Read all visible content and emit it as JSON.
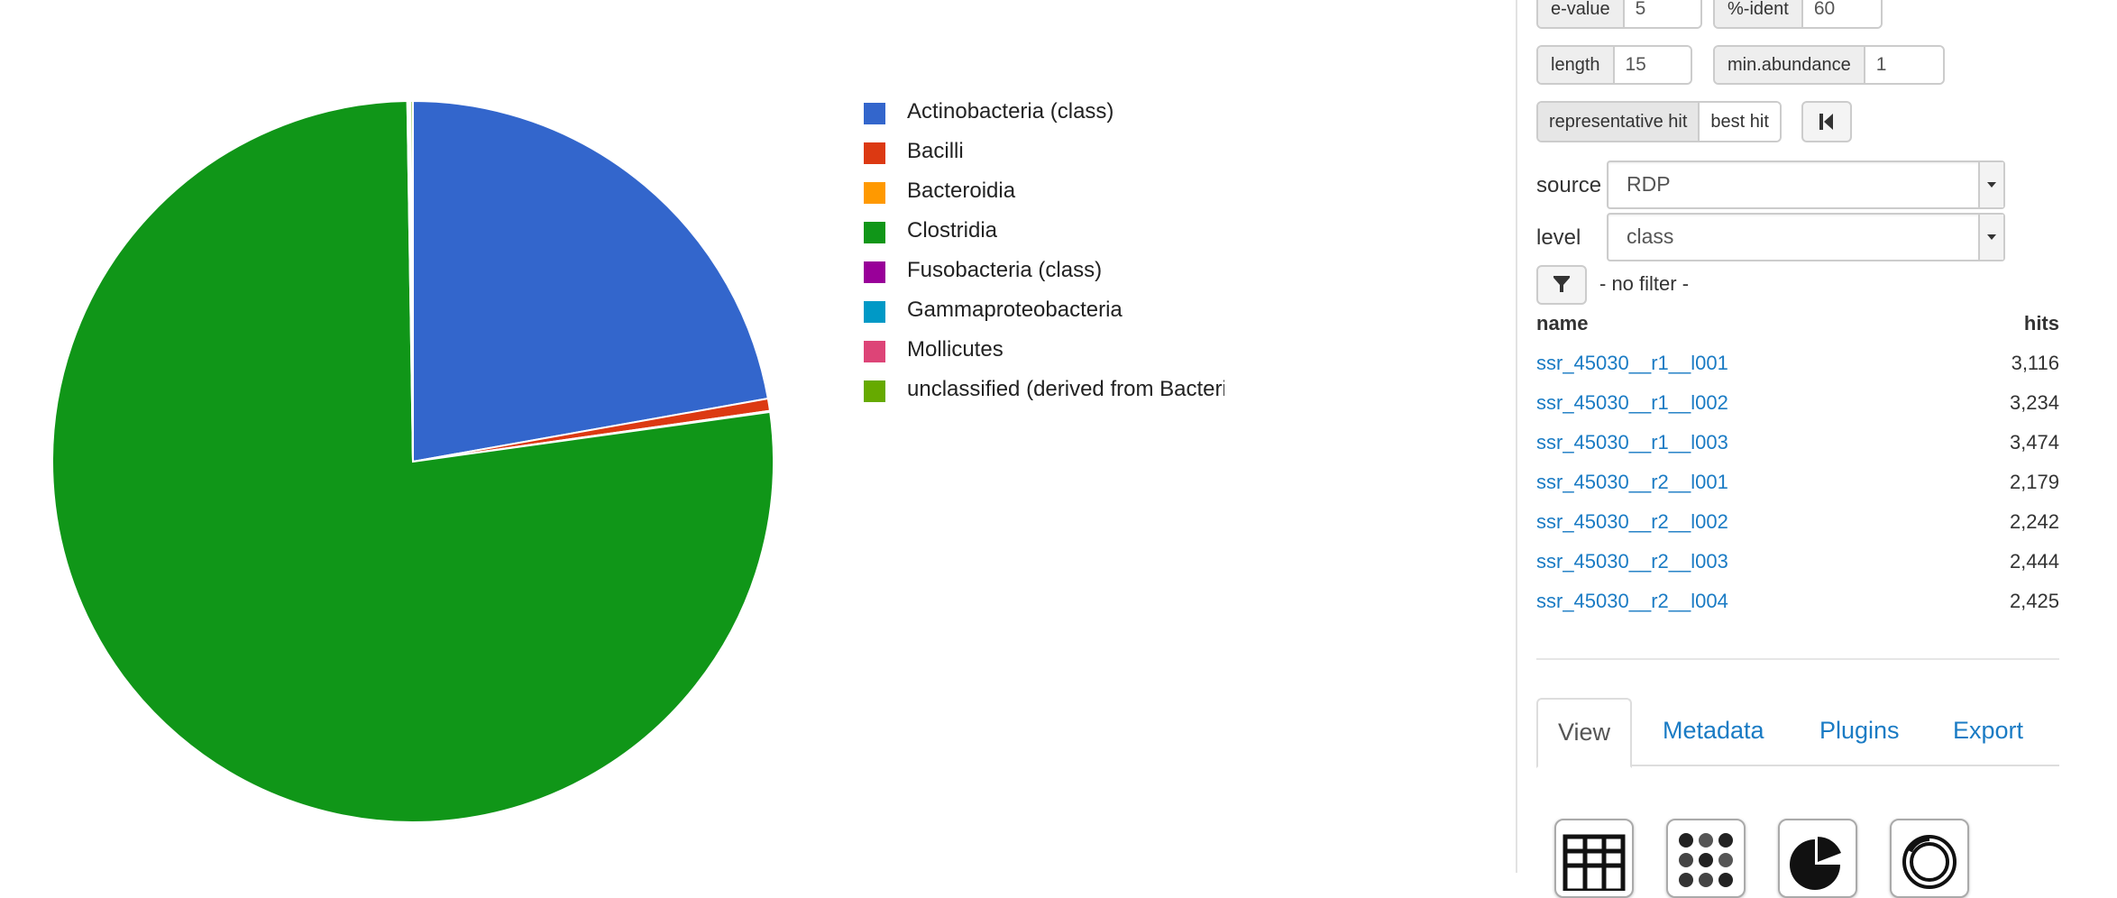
{
  "chart_data": {
    "type": "pie",
    "title": "",
    "legend_position": "right",
    "series": [
      {
        "name": "Actinobacteria (class)",
        "value": 22.2,
        "color": "#3366cc"
      },
      {
        "name": "Bacilli",
        "value": 0.55,
        "color": "#dc3912"
      },
      {
        "name": "Bacteroidia",
        "value": 0.05,
        "color": "#ff9900"
      },
      {
        "name": "Clostridia",
        "value": 76.95,
        "color": "#109618"
      },
      {
        "name": "Fusobacteria (class)",
        "value": 0.05,
        "color": "#990099"
      },
      {
        "name": "Gammaproteobacteria",
        "value": 0.05,
        "color": "#0099c6"
      },
      {
        "name": "Mollicutes",
        "value": 0.05,
        "color": "#dd4477"
      },
      {
        "name": "unclassified (derived from Bacteri",
        "value": 0.1,
        "color": "#66aa00"
      }
    ]
  },
  "params": {
    "evalue_label": "e-value",
    "evalue_value": "5",
    "ident_label": "%-ident",
    "ident_value": "60",
    "length_label": "length",
    "length_value": "15",
    "minab_label": "min.abundance",
    "minab_value": "1"
  },
  "hit_type": {
    "representative": "representative hit",
    "best": "best hit"
  },
  "source": {
    "label": "source",
    "value": "RDP"
  },
  "level": {
    "label": "level",
    "value": "class"
  },
  "filter": {
    "text": "- no filter -"
  },
  "table": {
    "col_name": "name",
    "col_hits": "hits",
    "rows": [
      {
        "name": "ssr_45030__r1__l001",
        "hits": "3,116"
      },
      {
        "name": "ssr_45030__r1__l002",
        "hits": "3,234"
      },
      {
        "name": "ssr_45030__r1__l003",
        "hits": "3,474"
      },
      {
        "name": "ssr_45030__r2__l001",
        "hits": "2,179"
      },
      {
        "name": "ssr_45030__r2__l002",
        "hits": "2,242"
      },
      {
        "name": "ssr_45030__r2__l003",
        "hits": "2,444"
      },
      {
        "name": "ssr_45030__r2__l004",
        "hits": "2,425"
      }
    ]
  },
  "tabs": [
    {
      "label": "View",
      "active": true
    },
    {
      "label": "Metadata",
      "active": false
    },
    {
      "label": "Plugins",
      "active": false
    },
    {
      "label": "Export",
      "active": false
    }
  ],
  "view_icons": [
    "table-icon",
    "heatmap-icon",
    "pie-chart-icon",
    "donut-chart-icon"
  ]
}
